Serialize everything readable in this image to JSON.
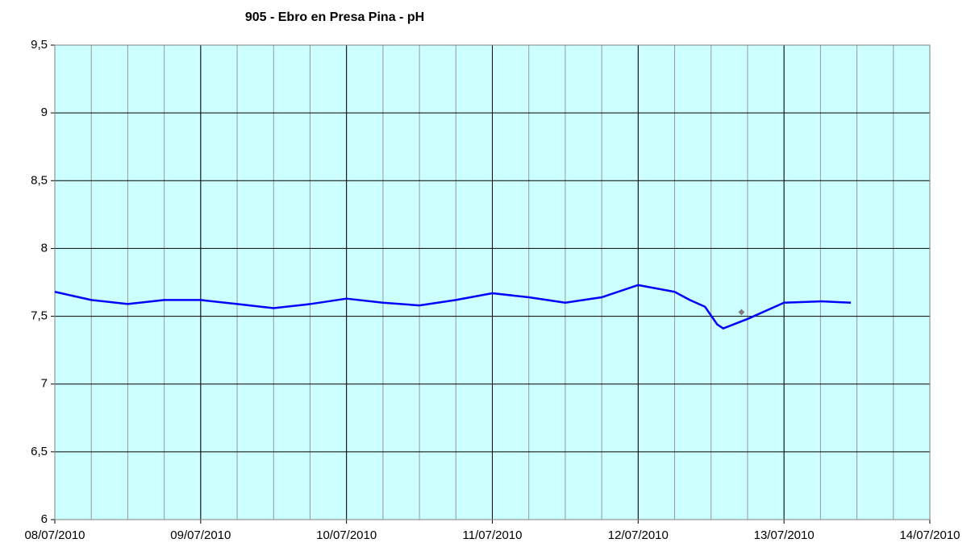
{
  "chart_data": {
    "type": "line",
    "title": "905 - Ebro en Presa Pina - pH",
    "xlim": [
      0,
      144
    ],
    "xticks": [
      {
        "value": 0,
        "label": "08/07/2010"
      },
      {
        "value": 24,
        "label": "09/07/2010"
      },
      {
        "value": 48,
        "label": "10/07/2010"
      },
      {
        "value": 72,
        "label": "11/07/2010"
      },
      {
        "value": 96,
        "label": "12/07/2010"
      },
      {
        "value": 120,
        "label": "13/07/2010"
      },
      {
        "value": 144,
        "label": "14/07/2010"
      }
    ],
    "xminor_step": 6,
    "ylim": [
      6,
      9.5
    ],
    "yticks": [
      6,
      {
        "value": 6.5,
        "label": "6,5"
      },
      7,
      {
        "value": 7.5,
        "label": "7,5"
      },
      8,
      {
        "value": 8.5,
        "label": "8,5"
      },
      9,
      {
        "value": 9.5,
        "label": "9,5"
      }
    ],
    "grid": true,
    "background": "#ccffff",
    "series": [
      {
        "color": "#0000ff",
        "x": [
          0,
          6,
          12,
          18,
          24,
          30,
          36,
          42,
          48,
          54,
          60,
          66,
          72,
          78,
          84,
          90,
          96,
          102,
          104.5,
          107,
          109,
          110,
          114,
          120,
          126,
          131
        ],
        "values": [
          7.68,
          7.62,
          7.59,
          7.62,
          7.62,
          7.59,
          7.56,
          7.59,
          7.63,
          7.6,
          7.58,
          7.62,
          7.67,
          7.64,
          7.6,
          7.64,
          7.73,
          7.68,
          7.62,
          7.57,
          7.44,
          7.41,
          7.48,
          7.6,
          7.61,
          7.6
        ]
      },
      {
        "color": "#808080",
        "marker": "diamond",
        "x": [
          113
        ],
        "values": [
          7.53
        ]
      }
    ]
  }
}
